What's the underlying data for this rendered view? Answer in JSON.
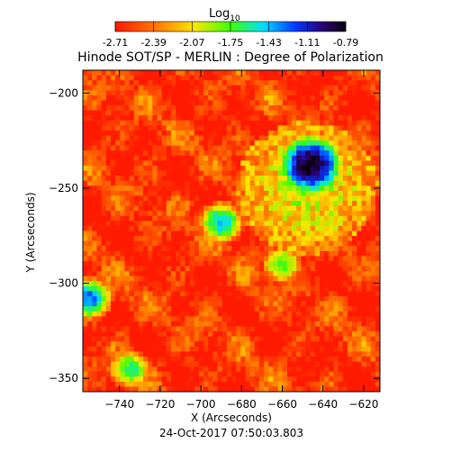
{
  "chart_data": {
    "type": "heatmap",
    "title": "Hinode SOT/SP - MERLIN : Degree of Polarization",
    "xlabel": "X (Arcseconds)",
    "ylabel": "Y (Arcseconds)",
    "timestamp": "24-Oct-2017 07:50:03.803",
    "xlim": [
      -758,
      -612
    ],
    "ylim": [
      -357,
      -188
    ],
    "x_ticks": [
      -740,
      -720,
      -700,
      -680,
      -660,
      -640,
      -620
    ],
    "y_ticks": [
      -200,
      -250,
      -300,
      -350
    ],
    "colorbar": {
      "label": "Log",
      "label_subscript": "10",
      "tick_labels": [
        "-2.71",
        "-2.39",
        "-2.07",
        "-1.75",
        "-1.43",
        "-1.11",
        "-0.79"
      ],
      "range": [
        -2.71,
        -0.79
      ],
      "colors": [
        "#ff1a00",
        "#ff7a00",
        "#ffe500",
        "#3dff00",
        "#00e0ff",
        "#0038ff",
        "#2a006f",
        "#0a0010"
      ]
    },
    "features": [
      {
        "kind": "polarization-peak",
        "x": -646,
        "y": -238,
        "value": -0.79
      },
      {
        "kind": "network-patch",
        "x": -755,
        "y": -308,
        "value": -1.3
      },
      {
        "kind": "network-patch",
        "x": -735,
        "y": -345,
        "value": -1.6
      },
      {
        "kind": "network-patch",
        "x": -690,
        "y": -268,
        "value": -1.4
      },
      {
        "kind": "network-patch",
        "x": -660,
        "y": -290,
        "value": -1.7
      }
    ]
  }
}
